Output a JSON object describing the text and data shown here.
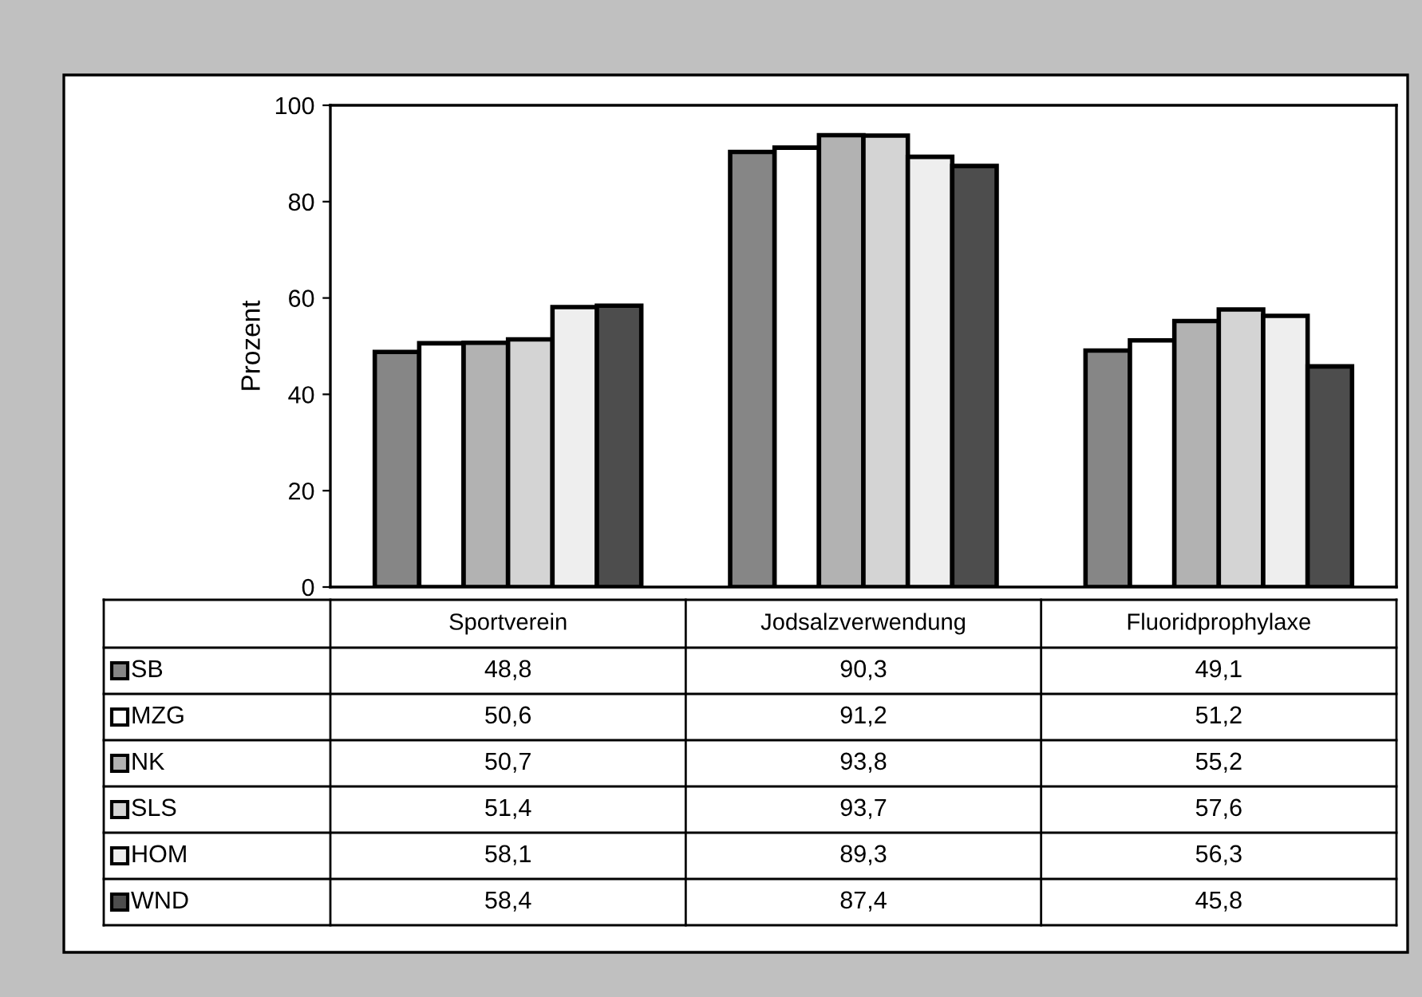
{
  "chart_data": {
    "type": "bar",
    "ylabel": "Prozent",
    "categories": [
      "Sportverein",
      "Jodsalzverwendung",
      "Fluoridprophylaxe"
    ],
    "series": [
      {
        "name": "SB",
        "color": "#868686",
        "values": [
          48.8,
          90.3,
          49.1
        ],
        "value_labels": [
          "48,8",
          "90,3",
          "49,1"
        ]
      },
      {
        "name": "MZG",
        "color": "#ffffff",
        "values": [
          50.6,
          91.2,
          51.2
        ],
        "value_labels": [
          "50,6",
          "91,2",
          "51,2"
        ]
      },
      {
        "name": "NK",
        "color": "#b2b2b2",
        "values": [
          50.7,
          93.8,
          55.2
        ],
        "value_labels": [
          "50,7",
          "93,8",
          "55,2"
        ]
      },
      {
        "name": "SLS",
        "color": "#d4d4d4",
        "values": [
          51.4,
          93.7,
          57.6
        ],
        "value_labels": [
          "51,4",
          "93,7",
          "57,6"
        ]
      },
      {
        "name": "HOM",
        "color": "#eeeeee",
        "values": [
          58.1,
          89.3,
          56.3
        ],
        "value_labels": [
          "58,1",
          "89,3",
          "56,3"
        ]
      },
      {
        "name": "WND",
        "color": "#4d4d4d",
        "values": [
          58.4,
          87.4,
          45.8
        ],
        "value_labels": [
          "58,4",
          "87,4",
          "45,8"
        ]
      }
    ],
    "ylim": [
      0,
      100
    ],
    "yticks": [
      0,
      20,
      40,
      60,
      80,
      100
    ],
    "grid": false,
    "legend": "bottom",
    "tick_labels": "y"
  }
}
